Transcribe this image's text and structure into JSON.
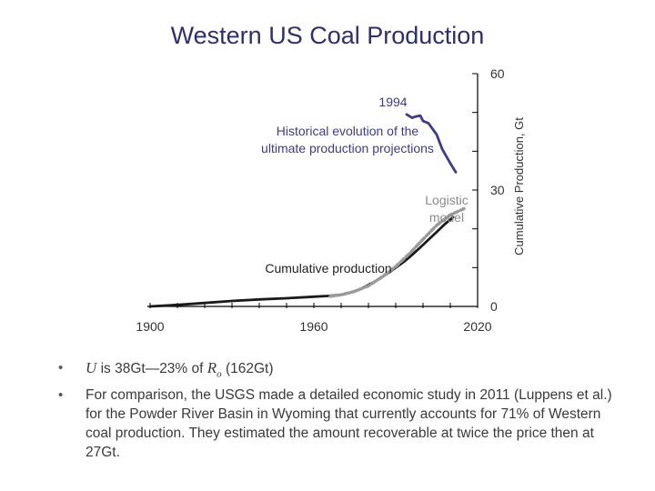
{
  "slide": {
    "title": "Western US Coal Production"
  },
  "chart_data": {
    "type": "line",
    "title": "",
    "xlabel": "",
    "ylabel": "Cumulative Production, Gt",
    "xlim": [
      1900,
      2020
    ],
    "ylim": [
      0,
      60
    ],
    "x_tick_labels": [
      "1900",
      "1960",
      "2020"
    ],
    "y_tick_labels": [
      "0",
      "30",
      "60"
    ],
    "series": [
      {
        "name": "Cumulative production",
        "color": "#1a1a1a",
        "x": [
          1900,
          1910,
          1920,
          1930,
          1940,
          1950,
          1960,
          1965,
          1970,
          1972,
          1975,
          1978,
          1981,
          1984,
          1987,
          1990,
          1993,
          1996,
          1999,
          2002,
          2005,
          2008,
          2011
        ],
        "y": [
          0.0,
          0.4,
          0.9,
          1.4,
          1.8,
          2.1,
          2.5,
          2.7,
          3.0,
          3.3,
          3.9,
          4.8,
          5.9,
          7.1,
          8.5,
          10.0,
          11.5,
          13.3,
          15.2,
          17.2,
          19.2,
          21.2,
          23.0
        ]
      },
      {
        "name": "Logistic model",
        "color": "#9a9a9a",
        "dashed": true,
        "x": [
          1966,
          1970,
          1975,
          1980,
          1985,
          1990,
          1995,
          2000,
          2005,
          2010,
          2015
        ],
        "y": [
          2.6,
          3.0,
          3.9,
          5.3,
          7.6,
          10.3,
          13.6,
          17.3,
          20.9,
          23.6,
          25.2
        ]
      },
      {
        "name": "Historical evolution of the ultimate production projections",
        "color": "#3b3d86",
        "x": [
          1994,
          1996,
          1997,
          1999,
          2000,
          2002,
          2005,
          2007,
          2010,
          2012
        ],
        "y": [
          49.5,
          48.6,
          48.9,
          49.2,
          47.8,
          47.2,
          44.3,
          40.6,
          36.9,
          34.6
        ]
      }
    ],
    "annotations": [
      "1994",
      "Historical evolution of the ultimate production projections",
      "Logistic model",
      "Cumulative production"
    ],
    "annotation_lines": {
      "projection": [
        "Historical evolution of the",
        "ultimate production projections"
      ],
      "logistic": [
        "Logistic",
        "model"
      ]
    }
  },
  "bullets": {
    "b1_prefix": "U",
    "b1_mid": " is 38Gt—23% of ",
    "b1_r": "R",
    "b1_sub": "o",
    "b1_suffix": " (162Gt)",
    "b2": "For comparison, the USGS made a detailed economic study in 2011 (Luppens et al.) for the Powder River Basin in Wyoming that currently accounts for 71% of Western coal production. They estimated the amount recoverable at twice the price then at 27Gt."
  },
  "colors": {
    "title": "#2e2f6e",
    "projection": "#3b3d86",
    "cumulative": "#1a1a1a",
    "logistic": "#9a9a9a",
    "text": "#3a3a3a"
  }
}
